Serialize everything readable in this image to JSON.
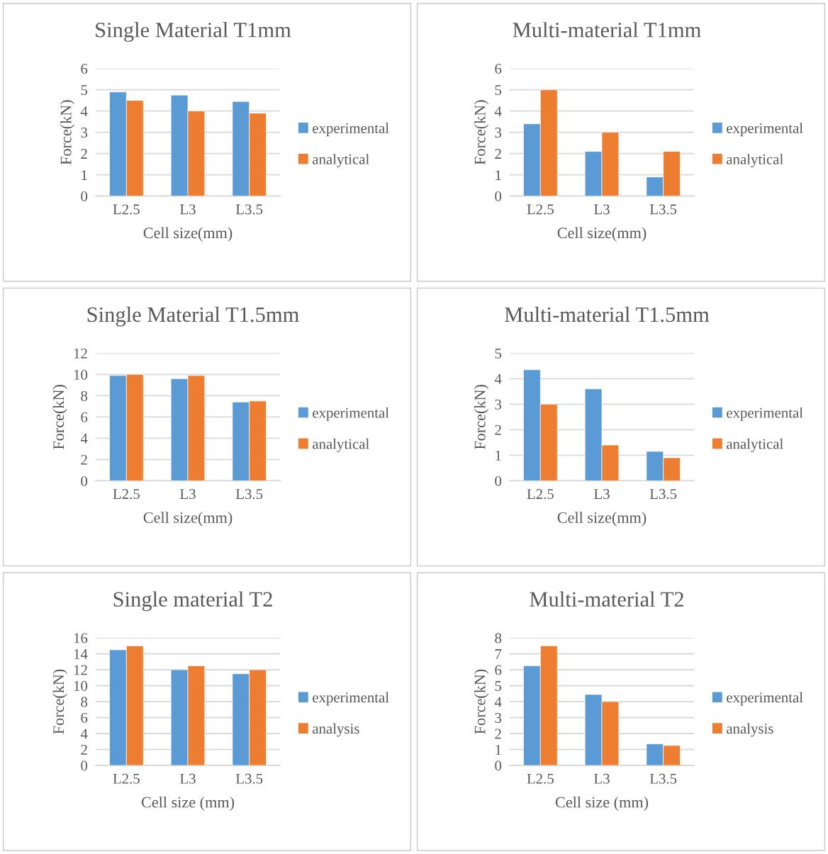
{
  "chart_data": [
    {
      "type": "bar",
      "title": "Single Material T1mm",
      "xlabel": "Cell size(mm)",
      "ylabel": "Force(kN)",
      "categories": [
        "L2.5",
        "L3",
        "L3.5"
      ],
      "ylim": [
        0,
        6
      ],
      "yticks": [
        0,
        1,
        2,
        3,
        4,
        5,
        6
      ],
      "grid": "y",
      "legend": "right",
      "series": [
        {
          "name": "experimental",
          "color": "#5b9bd5",
          "values": [
            4.9,
            4.75,
            4.45
          ]
        },
        {
          "name": "analytical",
          "color": "#ed7d31",
          "values": [
            4.5,
            4.0,
            3.9
          ]
        }
      ]
    },
    {
      "type": "bar",
      "title": "Multi-material T1mm",
      "xlabel": "Cell size(mm)",
      "ylabel": "Force(kN)",
      "categories": [
        "L2.5",
        "L3",
        "L3.5"
      ],
      "ylim": [
        0,
        6
      ],
      "yticks": [
        0,
        1,
        2,
        3,
        4,
        5,
        6
      ],
      "grid": "y",
      "legend": "right",
      "series": [
        {
          "name": "experimental",
          "color": "#5b9bd5",
          "values": [
            3.4,
            2.1,
            0.9
          ]
        },
        {
          "name": "analytical",
          "color": "#ed7d31",
          "values": [
            5.0,
            3.0,
            2.1
          ]
        }
      ]
    },
    {
      "type": "bar",
      "title": "Single Material T1.5mm",
      "xlabel": "Cell size(mm)",
      "ylabel": "Force(kN)",
      "categories": [
        "L2.5",
        "L3",
        "L3.5"
      ],
      "ylim": [
        0,
        12
      ],
      "yticks": [
        0,
        2,
        4,
        6,
        8,
        10,
        12
      ],
      "grid": "y",
      "legend": "right",
      "series": [
        {
          "name": "experimental",
          "color": "#5b9bd5",
          "values": [
            9.9,
            9.6,
            7.4
          ]
        },
        {
          "name": "analytical",
          "color": "#ed7d31",
          "values": [
            10.0,
            9.9,
            7.5
          ]
        }
      ]
    },
    {
      "type": "bar",
      "title": "Multi-material T1.5mm",
      "xlabel": "Cell size(mm)",
      "ylabel": "Force(kN)",
      "categories": [
        "L2.5",
        "L3",
        "L3.5"
      ],
      "ylim": [
        0,
        5
      ],
      "yticks": [
        0,
        1,
        2,
        3,
        4,
        5
      ],
      "grid": "y",
      "legend": "right",
      "series": [
        {
          "name": "experimental",
          "color": "#5b9bd5",
          "values": [
            4.35,
            3.6,
            1.15
          ]
        },
        {
          "name": "analytical",
          "color": "#ed7d31",
          "values": [
            3.0,
            1.4,
            0.9
          ]
        }
      ]
    },
    {
      "type": "bar",
      "title": "Single material T2",
      "xlabel": "Cell size (mm)",
      "ylabel": "Force(kN)",
      "categories": [
        "L2.5",
        "L3",
        "L3.5"
      ],
      "ylim": [
        0,
        16
      ],
      "yticks": [
        0,
        2,
        4,
        6,
        8,
        10,
        12,
        14,
        16
      ],
      "grid": "y",
      "legend": "right",
      "series": [
        {
          "name": "experimental",
          "color": "#5b9bd5",
          "values": [
            14.5,
            12.0,
            11.5
          ]
        },
        {
          "name": "analysis",
          "color": "#ed7d31",
          "values": [
            15.0,
            12.5,
            12.0
          ]
        }
      ]
    },
    {
      "type": "bar",
      "title": "Multi-material T2",
      "xlabel": "Cell size (mm)",
      "ylabel": "Force(kN)",
      "categories": [
        "L2.5",
        "L3",
        "L3.5"
      ],
      "ylim": [
        0,
        8
      ],
      "yticks": [
        0,
        1,
        2,
        3,
        4,
        5,
        6,
        7,
        8
      ],
      "grid": "y",
      "legend": "right",
      "series": [
        {
          "name": "experimental",
          "color": "#5b9bd5",
          "values": [
            6.25,
            4.45,
            1.35
          ]
        },
        {
          "name": "analysis",
          "color": "#ed7d31",
          "values": [
            7.5,
            4.0,
            1.25
          ]
        }
      ]
    }
  ]
}
